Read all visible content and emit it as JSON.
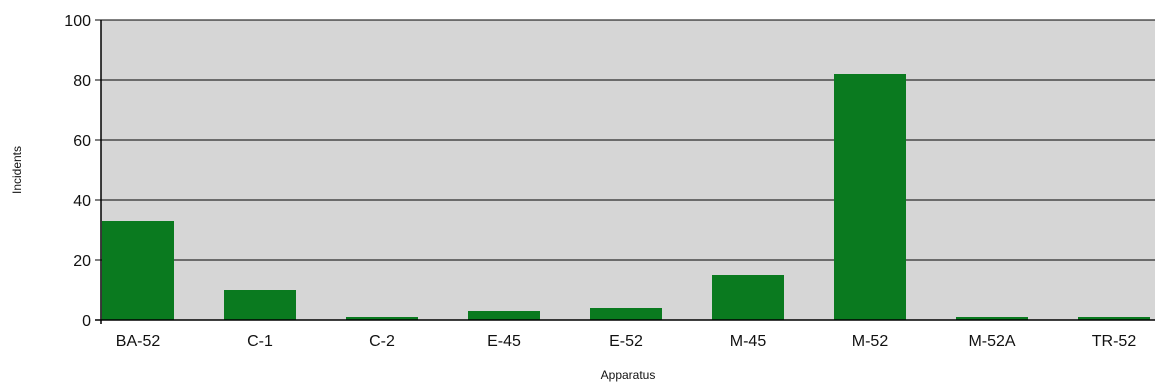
{
  "chart_data": {
    "type": "bar",
    "title": "",
    "xlabel": "Apparatus",
    "ylabel": "Incidents",
    "categories": [
      "BA-52",
      "C-1",
      "C-2",
      "E-45",
      "E-52",
      "M-45",
      "M-52",
      "M-52A",
      "TR-52"
    ],
    "values": [
      33,
      10,
      1,
      3,
      4,
      15,
      82,
      1,
      1
    ],
    "ylim": [
      0,
      100
    ],
    "yticks": [
      0,
      20,
      40,
      60,
      80,
      100
    ],
    "grid": true,
    "legend": "none",
    "colors": {
      "bar": "#0a7a1f",
      "plot_background": "#d6d6d6",
      "grid": "#000000"
    }
  }
}
